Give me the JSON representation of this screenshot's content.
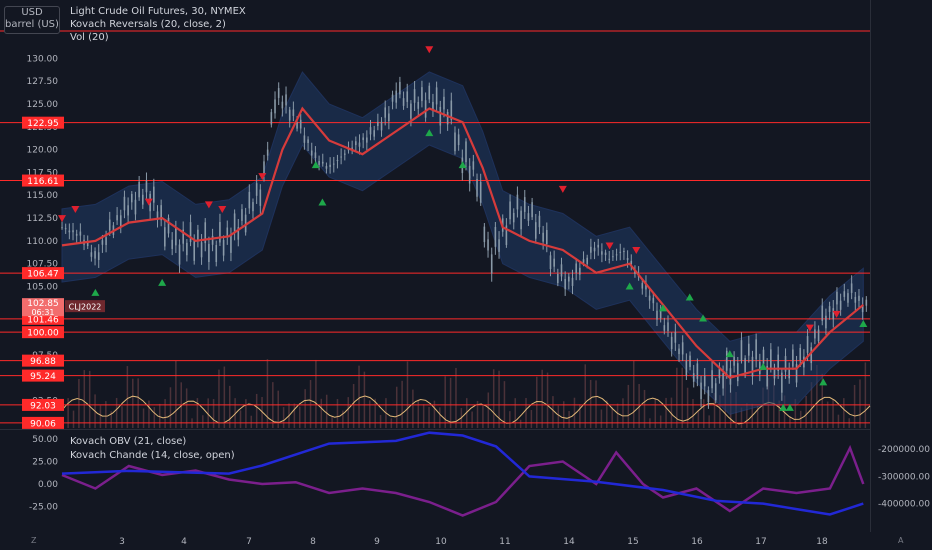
{
  "header": {
    "currency": "USD",
    "unit": "barrel (US)",
    "symbol_line": "Light Crude Oil Futures, 30, NYMEX",
    "indicator_1": "Kovach Reversals (20, close, 2)",
    "indicator_2": "Vol (20)",
    "subpane_1": "Kovach OBV (21, close)",
    "subpane_2": "Kovach Chande (14, close, open)"
  },
  "colors": {
    "background": "#131722",
    "candle": "#8a9aa8",
    "middle_band": "#d63b3b",
    "band_fill": "#1f3a66",
    "level_line": "#ff2a2a",
    "level_tag": "#ff2a2a",
    "price_tag": "#f26d6d",
    "obv": "#2228d6",
    "chande": "#7b1f8c",
    "oscillator": "#e2b878",
    "volume": "#5a3a40",
    "reversal_up": "#1ea84a",
    "reversal_down": "#e0202e"
  },
  "corner": {
    "left": "Z",
    "right": "A"
  },
  "chart_data": [
    {
      "type": "candlestick",
      "title": "Light Crude Oil Futures, 30, NYMEX",
      "ylim": [
        89.5,
        134.2
      ],
      "y_ticks": [
        "130.00",
        "127.50",
        "125.00",
        "122.50",
        "120.00",
        "117.50",
        "115.00",
        "112.50",
        "110.00",
        "107.50",
        "105.00",
        "102.50",
        "100.00",
        "97.50",
        "95.00",
        "92.50"
      ],
      "x_ticks": [
        "3",
        "4",
        "7",
        "8",
        "9",
        "10",
        "11",
        "14",
        "15",
        "16",
        "17",
        "18"
      ],
      "horizontal_levels": [
        {
          "value": 133.0,
          "label": ""
        },
        {
          "value": 122.95,
          "label": "122.95"
        },
        {
          "value": 116.61,
          "label": "116.61"
        },
        {
          "value": 106.47,
          "label": "106.47"
        },
        {
          "value": 101.46,
          "label": "101.46"
        },
        {
          "value": 100.0,
          "label": "100.00"
        },
        {
          "value": 96.88,
          "label": "96.88"
        },
        {
          "value": 95.24,
          "label": "95.24"
        },
        {
          "value": 92.03,
          "label": "92.03"
        },
        {
          "value": 90.06,
          "label": "90.06"
        }
      ],
      "last_price": {
        "value": "102.85",
        "countdown": "06:31",
        "symbol": "CLJ2022"
      },
      "price_path": [
        {
          "x": 2.0,
          "y": 111.5
        },
        {
          "x": 2.3,
          "y": 110.5
        },
        {
          "x": 2.5,
          "y": 108.0
        },
        {
          "x": 2.7,
          "y": 111.0
        },
        {
          "x": 3.0,
          "y": 114.0
        },
        {
          "x": 3.3,
          "y": 115.5
        },
        {
          "x": 3.5,
          "y": 112.0
        },
        {
          "x": 3.7,
          "y": 109.5
        },
        {
          "x": 4.0,
          "y": 110.0
        },
        {
          "x": 4.3,
          "y": 109.5
        },
        {
          "x": 4.6,
          "y": 111.0
        },
        {
          "x": 4.8,
          "y": 113.5
        },
        {
          "x": 5.0,
          "y": 116.0
        },
        {
          "x": 5.2,
          "y": 126.0
        },
        {
          "x": 5.4,
          "y": 124.5
        },
        {
          "x": 5.6,
          "y": 122.0
        },
        {
          "x": 5.8,
          "y": 119.0
        },
        {
          "x": 6.0,
          "y": 118.0
        },
        {
          "x": 6.3,
          "y": 120.0
        },
        {
          "x": 6.6,
          "y": 121.5
        },
        {
          "x": 6.9,
          "y": 124.0
        },
        {
          "x": 7.0,
          "y": 126.5
        },
        {
          "x": 7.2,
          "y": 125.0
        },
        {
          "x": 7.5,
          "y": 125.5
        },
        {
          "x": 7.8,
          "y": 124.0
        },
        {
          "x": 8.0,
          "y": 119.0
        },
        {
          "x": 8.2,
          "y": 117.5
        },
        {
          "x": 8.4,
          "y": 108.0
        },
        {
          "x": 8.6,
          "y": 111.0
        },
        {
          "x": 8.8,
          "y": 113.5
        },
        {
          "x": 9.0,
          "y": 113.0
        },
        {
          "x": 9.2,
          "y": 111.0
        },
        {
          "x": 9.4,
          "y": 106.5
        },
        {
          "x": 9.6,
          "y": 105.5
        },
        {
          "x": 9.8,
          "y": 107.5
        },
        {
          "x": 10.0,
          "y": 109.5
        },
        {
          "x": 10.2,
          "y": 108.0
        },
        {
          "x": 10.4,
          "y": 109.0
        },
        {
          "x": 10.6,
          "y": 106.5
        },
        {
          "x": 10.8,
          "y": 104.0
        },
        {
          "x": 11.0,
          "y": 101.0
        },
        {
          "x": 11.3,
          "y": 97.5
        },
        {
          "x": 11.5,
          "y": 95.0
        },
        {
          "x": 11.7,
          "y": 93.5
        },
        {
          "x": 11.9,
          "y": 95.5
        },
        {
          "x": 12.1,
          "y": 96.5
        },
        {
          "x": 12.3,
          "y": 97.5
        },
        {
          "x": 12.5,
          "y": 96.5
        },
        {
          "x": 12.8,
          "y": 95.5
        },
        {
          "x": 13.0,
          "y": 96.5
        },
        {
          "x": 13.2,
          "y": 98.0
        },
        {
          "x": 13.4,
          "y": 101.5
        },
        {
          "x": 13.6,
          "y": 103.0
        },
        {
          "x": 13.8,
          "y": 104.5
        },
        {
          "x": 14.0,
          "y": 102.9
        }
      ],
      "middle_band": [
        {
          "x": 2.0,
          "y": 109.5
        },
        {
          "x": 2.5,
          "y": 110.0
        },
        {
          "x": 3.0,
          "y": 112.0
        },
        {
          "x": 3.5,
          "y": 112.5
        },
        {
          "x": 4.0,
          "y": 110.0
        },
        {
          "x": 4.5,
          "y": 110.5
        },
        {
          "x": 5.0,
          "y": 113.0
        },
        {
          "x": 5.3,
          "y": 120.0
        },
        {
          "x": 5.6,
          "y": 124.5
        },
        {
          "x": 6.0,
          "y": 121.0
        },
        {
          "x": 6.5,
          "y": 119.5
        },
        {
          "x": 7.0,
          "y": 122.0
        },
        {
          "x": 7.5,
          "y": 124.5
        },
        {
          "x": 8.0,
          "y": 123.0
        },
        {
          "x": 8.3,
          "y": 118.0
        },
        {
          "x": 8.6,
          "y": 111.5
        },
        {
          "x": 9.0,
          "y": 110.0
        },
        {
          "x": 9.5,
          "y": 109.0
        },
        {
          "x": 10.0,
          "y": 106.5
        },
        {
          "x": 10.5,
          "y": 107.5
        },
        {
          "x": 11.0,
          "y": 103.0
        },
        {
          "x": 11.5,
          "y": 98.5
        },
        {
          "x": 12.0,
          "y": 95.0
        },
        {
          "x": 12.5,
          "y": 96.0
        },
        {
          "x": 13.0,
          "y": 96.0
        },
        {
          "x": 13.5,
          "y": 100.0
        },
        {
          "x": 14.0,
          "y": 103.0
        }
      ],
      "reversals_up": [
        {
          "x": 2.5,
          "y": 104.3
        },
        {
          "x": 3.5,
          "y": 105.4
        },
        {
          "x": 5.8,
          "y": 118.3
        },
        {
          "x": 5.9,
          "y": 114.2
        },
        {
          "x": 7.5,
          "y": 121.8
        },
        {
          "x": 8.0,
          "y": 118.3
        },
        {
          "x": 10.5,
          "y": 105.0
        },
        {
          "x": 11.0,
          "y": 102.6
        },
        {
          "x": 11.4,
          "y": 103.8
        },
        {
          "x": 11.6,
          "y": 101.5
        },
        {
          "x": 12.0,
          "y": 97.6
        },
        {
          "x": 12.5,
          "y": 96.2
        },
        {
          "x": 12.8,
          "y": 91.7
        },
        {
          "x": 12.9,
          "y": 91.7
        },
        {
          "x": 13.4,
          "y": 94.5
        },
        {
          "x": 14.0,
          "y": 100.9
        }
      ],
      "reversals_down": [
        {
          "x": 2.0,
          "y": 112.5
        },
        {
          "x": 2.2,
          "y": 113.5
        },
        {
          "x": 3.3,
          "y": 114.3
        },
        {
          "x": 4.2,
          "y": 114.0
        },
        {
          "x": 4.4,
          "y": 113.5
        },
        {
          "x": 5.0,
          "y": 117.1
        },
        {
          "x": 7.5,
          "y": 131.0
        },
        {
          "x": 9.5,
          "y": 115.7
        },
        {
          "x": 10.2,
          "y": 109.5
        },
        {
          "x": 10.6,
          "y": 109.0
        },
        {
          "x": 13.6,
          "y": 102.0
        },
        {
          "x": 13.2,
          "y": 100.5
        }
      ]
    },
    {
      "type": "line",
      "series": [
        {
          "name": "Kovach OBV (21, close)",
          "axis": "right",
          "y_ticks": [
            "-200000.00",
            "-300000.00",
            "-400000.00"
          ],
          "points": [
            {
              "x": 2.0,
              "y": -290000
            },
            {
              "x": 3.0,
              "y": -280000
            },
            {
              "x": 4.5,
              "y": -290000
            },
            {
              "x": 5.0,
              "y": -260000
            },
            {
              "x": 6.0,
              "y": -180000
            },
            {
              "x": 7.0,
              "y": -170000
            },
            {
              "x": 7.5,
              "y": -140000
            },
            {
              "x": 8.0,
              "y": -150000
            },
            {
              "x": 8.5,
              "y": -190000
            },
            {
              "x": 9.0,
              "y": -300000
            },
            {
              "x": 10.0,
              "y": -320000
            },
            {
              "x": 11.0,
              "y": -350000
            },
            {
              "x": 11.8,
              "y": -390000
            },
            {
              "x": 12.5,
              "y": -400000
            },
            {
              "x": 13.0,
              "y": -420000
            },
            {
              "x": 13.5,
              "y": -440000
            },
            {
              "x": 14.0,
              "y": -400000
            }
          ]
        },
        {
          "name": "Kovach Chande (14, close, open)",
          "axis": "left",
          "y_ticks": [
            "50.00",
            "25.00",
            "0.00",
            "-25.00"
          ],
          "points": [
            {
              "x": 2.0,
              "y": 10
            },
            {
              "x": 2.5,
              "y": -5
            },
            {
              "x": 3.0,
              "y": 20
            },
            {
              "x": 3.5,
              "y": 10
            },
            {
              "x": 4.0,
              "y": 15
            },
            {
              "x": 4.5,
              "y": 5
            },
            {
              "x": 5.0,
              "y": 0
            },
            {
              "x": 5.5,
              "y": 2
            },
            {
              "x": 6.0,
              "y": -10
            },
            {
              "x": 6.5,
              "y": -5
            },
            {
              "x": 7.0,
              "y": -10
            },
            {
              "x": 7.5,
              "y": -20
            },
            {
              "x": 8.0,
              "y": -35
            },
            {
              "x": 8.5,
              "y": -20
            },
            {
              "x": 9.0,
              "y": 20
            },
            {
              "x": 9.5,
              "y": 25
            },
            {
              "x": 10.0,
              "y": 0
            },
            {
              "x": 10.3,
              "y": 35
            },
            {
              "x": 10.7,
              "y": 0
            },
            {
              "x": 11.0,
              "y": -15
            },
            {
              "x": 11.5,
              "y": -5
            },
            {
              "x": 12.0,
              "y": -30
            },
            {
              "x": 12.5,
              "y": -5
            },
            {
              "x": 13.0,
              "y": -10
            },
            {
              "x": 13.5,
              "y": -5
            },
            {
              "x": 13.8,
              "y": 40
            },
            {
              "x": 14.0,
              "y": 0
            }
          ]
        }
      ]
    }
  ]
}
